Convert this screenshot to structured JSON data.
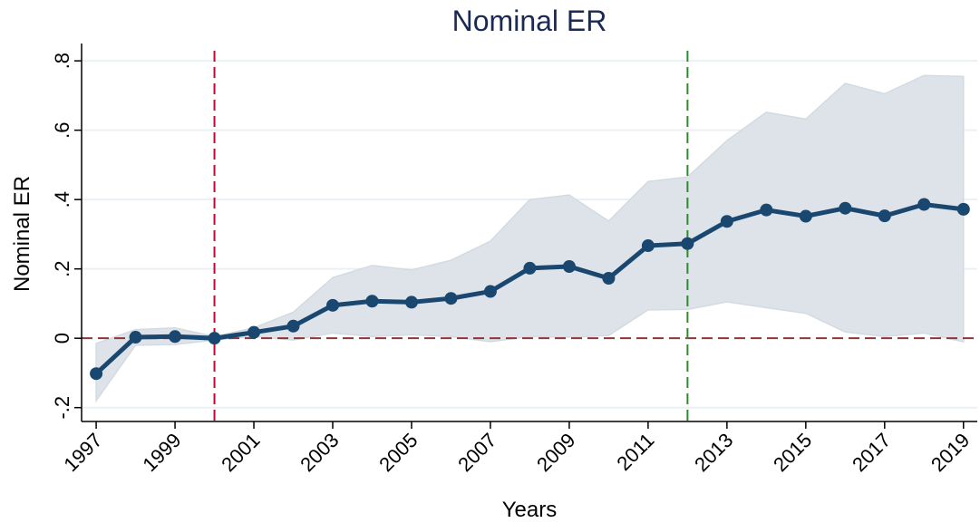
{
  "chart_data": {
    "type": "line",
    "title": "Nominal ER",
    "x_label": "Years",
    "y_label": "Nominal ER",
    "x": [
      1997,
      1998,
      1999,
      2000,
      2001,
      2002,
      2003,
      2004,
      2005,
      2006,
      2007,
      2008,
      2009,
      2010,
      2011,
      2012,
      2013,
      2014,
      2015,
      2016,
      2017,
      2018,
      2019
    ],
    "series": [
      {
        "color": "#1a476f",
        "band_color": "#dde3e9",
        "values": [
          -0.102,
          0.003,
          0.005,
          0.0,
          0.017,
          0.035,
          0.095,
          0.107,
          0.104,
          0.115,
          0.135,
          0.202,
          0.207,
          0.173,
          0.267,
          0.273,
          0.337,
          0.37,
          0.352,
          0.375,
          0.353,
          0.386,
          0.372
        ],
        "upper": [
          -0.015,
          0.025,
          0.03,
          0.005,
          0.03,
          0.075,
          0.175,
          0.21,
          0.197,
          0.225,
          0.28,
          0.4,
          0.413,
          0.338,
          0.452,
          0.465,
          0.57,
          0.652,
          0.632,
          0.735,
          0.705,
          0.758,
          0.755
        ],
        "lower": [
          -0.18,
          -0.02,
          -0.018,
          -0.005,
          0.005,
          -0.005,
          0.015,
          0.005,
          0.01,
          0.005,
          -0.01,
          0.005,
          0.003,
          0.008,
          0.082,
          0.083,
          0.105,
          0.088,
          0.072,
          0.018,
          0.005,
          0.015,
          -0.01
        ]
      }
    ],
    "vlines": [
      {
        "x": 2000,
        "color": "#c10534"
      },
      {
        "x": 2012,
        "color": "#2d8b2d"
      }
    ],
    "hline": {
      "y": 0,
      "color": "#90353b"
    },
    "xlim": [
      1996.63,
      2019.35
    ],
    "ylim": [
      -0.24,
      0.85
    ],
    "xticks": [
      1997,
      1999,
      2001,
      2003,
      2005,
      2007,
      2009,
      2011,
      2013,
      2015,
      2017,
      2019
    ],
    "yticks": [
      {
        "value": -0.2,
        "label": "-.2"
      },
      0,
      {
        "value": 0.2,
        "label": ".2"
      },
      {
        "value": 0.4,
        "label": ".4"
      },
      {
        "value": 0.6,
        "label": ".6"
      },
      {
        "value": 0.8,
        "label": ".8"
      }
    ],
    "grid": true
  }
}
